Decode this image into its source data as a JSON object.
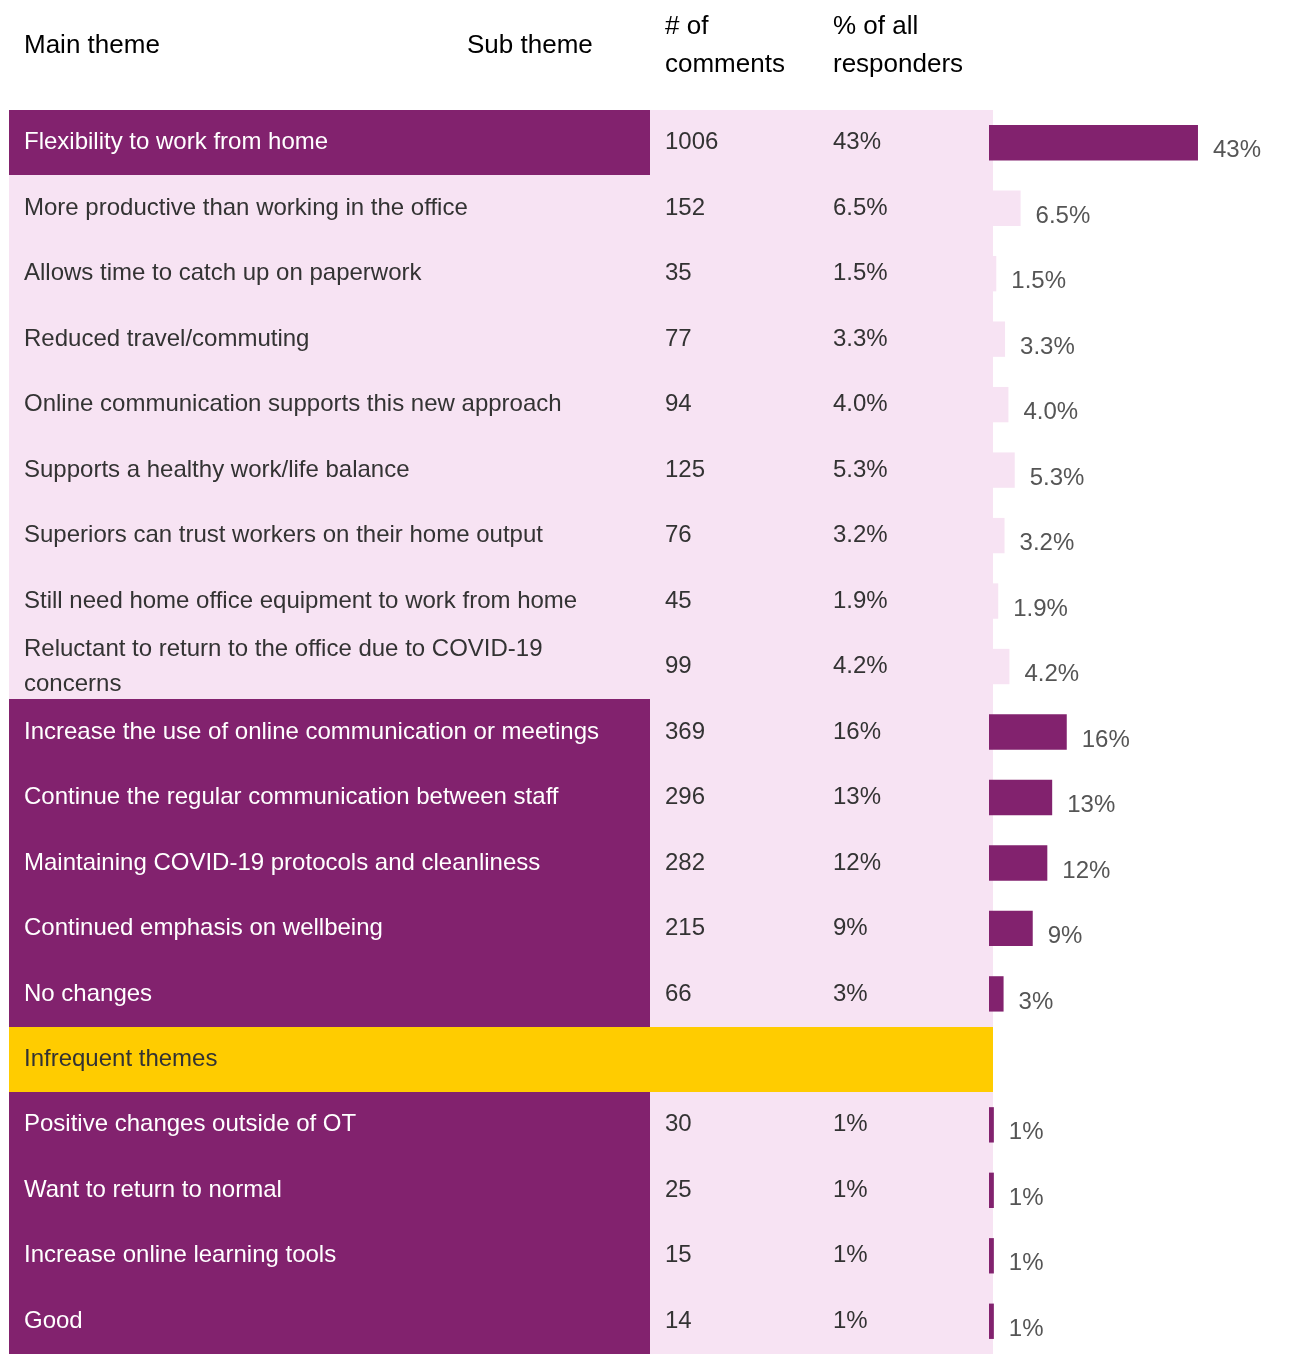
{
  "chart_data": {
    "type": "bar",
    "orientation": "horizontal",
    "annotations": [
      "Main theme",
      "Sub theme",
      "# of comments",
      "1006",
      "152",
      "35",
      "77",
      "94",
      "125",
      "76",
      "45",
      "99",
      "369",
      "296",
      "282",
      "215",
      "66",
      "30",
      "25",
      "15",
      "14"
    ],
    "categories": [
      "Flexibility to work from home",
      "More productive than working in the office",
      "Allows time to catch up on paperwork",
      "Reduced travel/commuting",
      "Online communication supports this new approach",
      "Supports a healthy work/life balance",
      "Superiors can trust workers on their home output",
      "Still need home office equipment to work from home",
      "Reluctant to return to the office due to COVID-19 concerns",
      "Increase the use of online communication or meetings",
      "Continue the regular communication between staff",
      "Maintaining COVID-19 protocols and cleanliness",
      "Continued emphasis on wellbeing",
      "No changes",
      "Infrequent themes",
      "Positive changes outside of OT",
      "Want to return to normal",
      "Increase online learning tools",
      "Good"
    ],
    "series": [
      {
        "name": "% of all responders",
        "values": [
          43,
          6.5,
          1.5,
          3.3,
          4.0,
          5.3,
          3.2,
          1.9,
          4.2,
          16,
          13,
          12,
          9,
          3,
          null,
          1,
          1,
          1,
          1
        ],
        "value_labels": [
          "43%",
          "6.5%",
          "1.5%",
          "3.3%",
          "4.0%",
          "5.3%",
          "3.2%",
          "1.9%",
          "4.2%",
          "16%",
          "13%",
          "12%",
          "9%",
          "3%",
          null,
          "1%",
          "1%",
          "1%",
          "1%"
        ],
        "colors": [
          "#82226e",
          "#f7e3f3",
          "#f7e3f3",
          "#f7e3f3",
          "#f7e3f3",
          "#f7e3f3",
          "#f7e3f3",
          "#f7e3f3",
          "#f7e3f3",
          "#82226e",
          "#82226e",
          "#82226e",
          "#82226e",
          "#82226e",
          "#ffcc00",
          "#82226e",
          "#82226e",
          "#82226e",
          "#82226e"
        ]
      }
    ]
  }
}
